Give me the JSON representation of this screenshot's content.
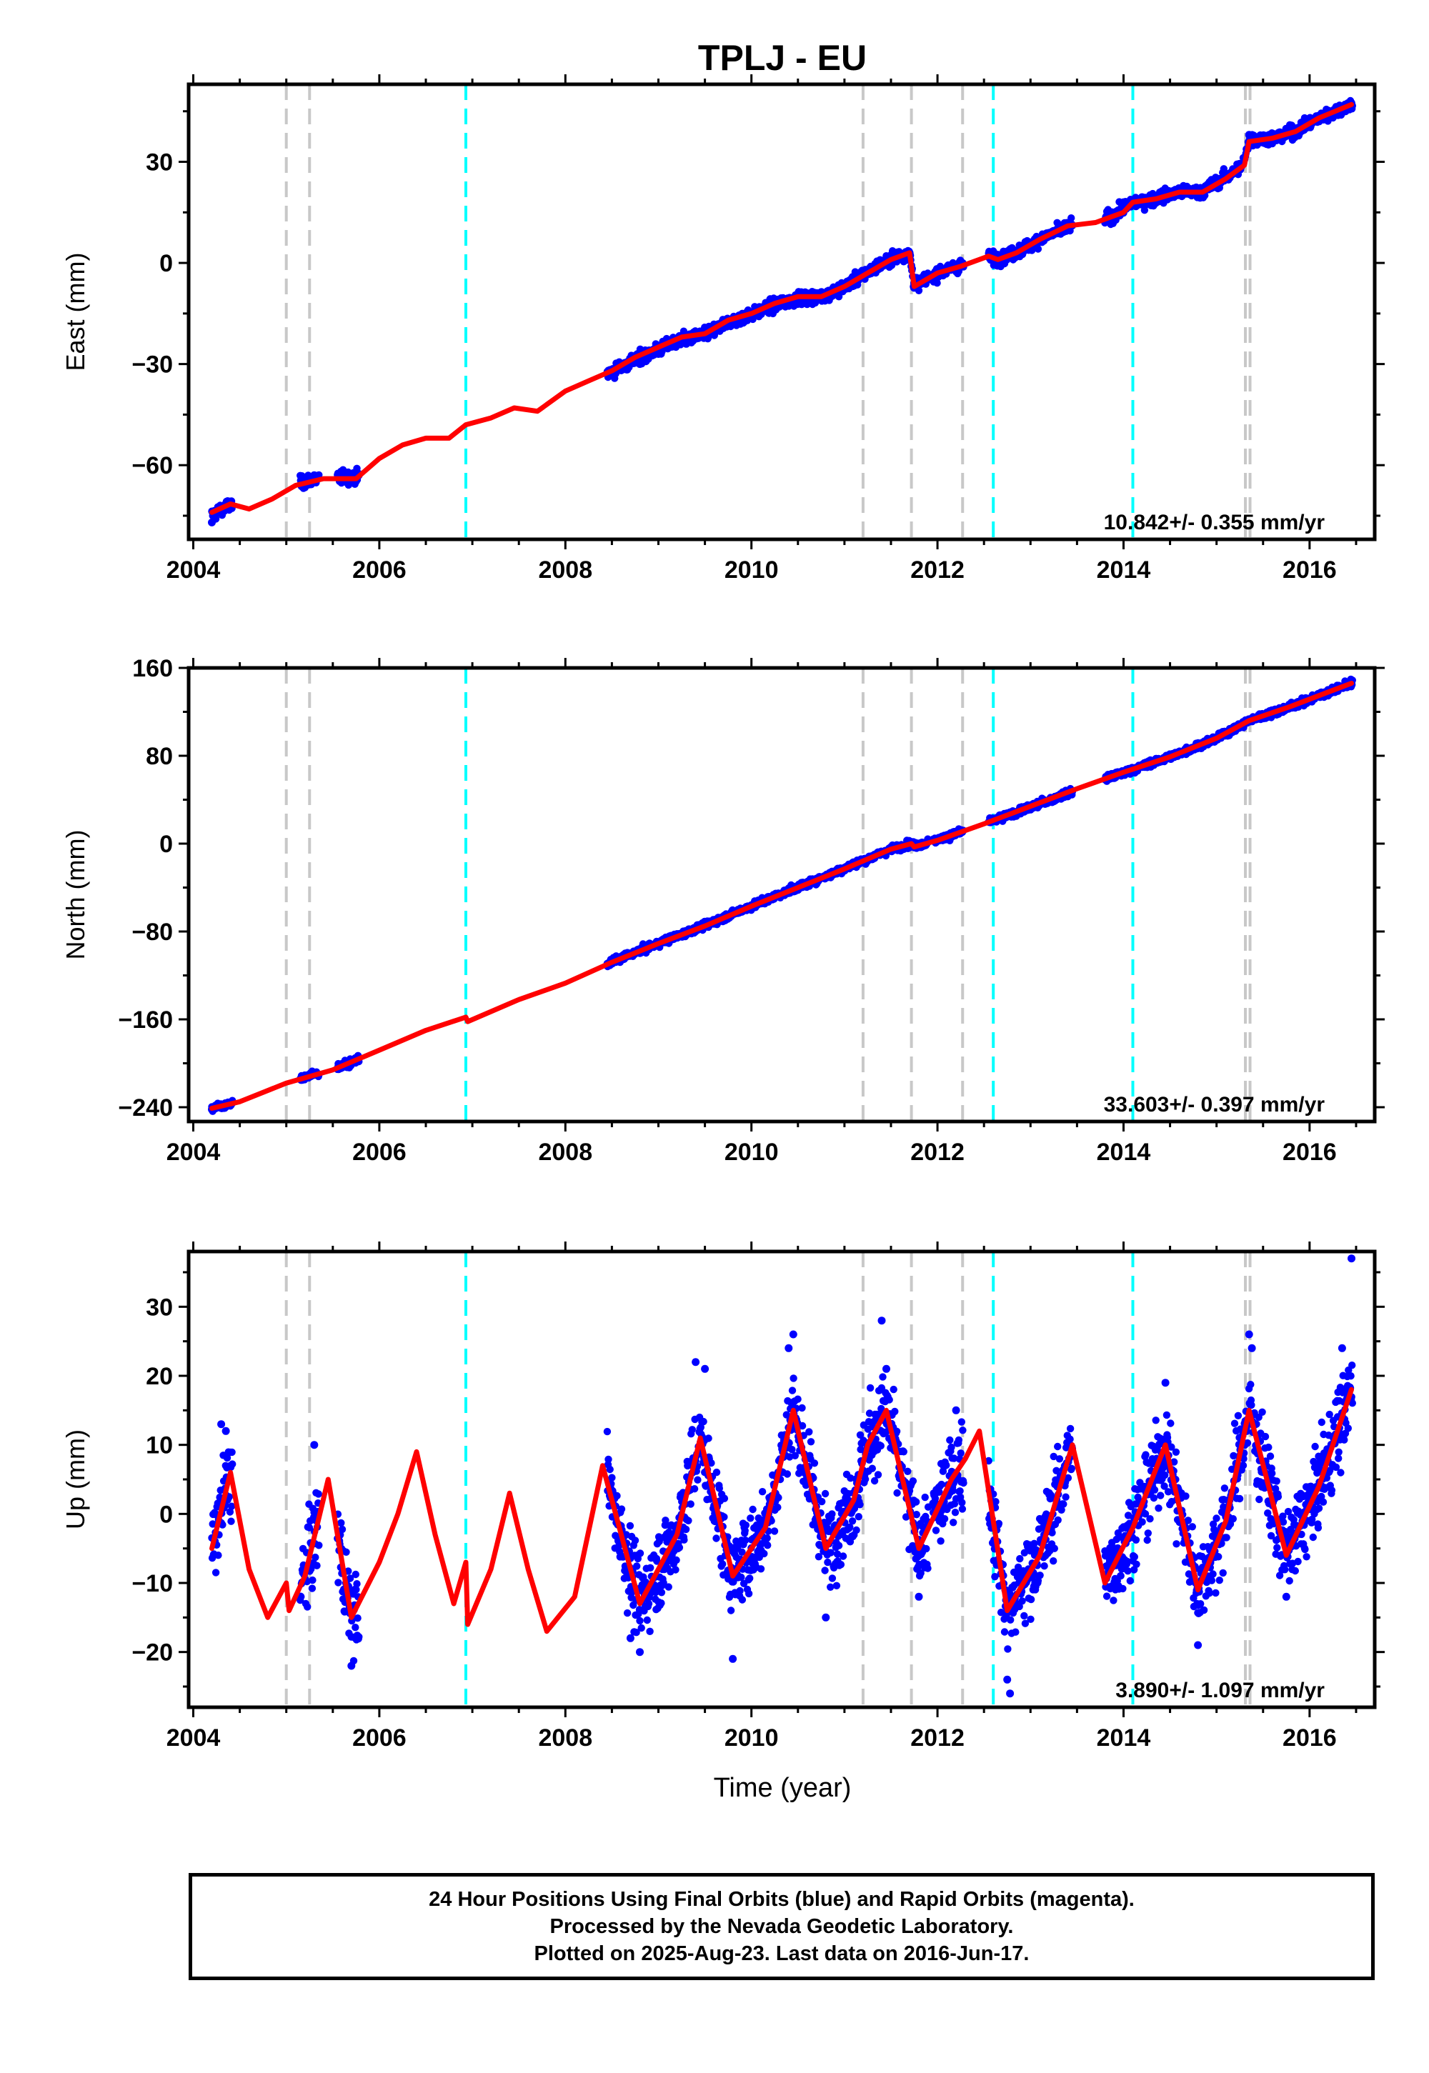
{
  "title": "TPLJ - EU",
  "xlabel": "Time (year)",
  "colors": {
    "data": "#0000ff",
    "model": "#ff0000",
    "gray_event": "#c8c8c8",
    "cyan_event": "#00ffff",
    "frame": "#000000"
  },
  "footer": {
    "line1": "24 Hour Positions Using Final Orbits (blue) and Rapid Orbits (magenta).",
    "line2": "Processed by the Nevada Geodetic Laboratory.",
    "line3": "Plotted on 2025-Aug-23. Last data on 2016-Jun-17."
  },
  "chart_data": [
    {
      "type": "scatter",
      "title": "TPLJ - EU",
      "ylabel": "East (mm)",
      "xlim": [
        2003.95,
        2016.7
      ],
      "ylim": [
        -82,
        53
      ],
      "xticks": [
        2004,
        2006,
        2008,
        2010,
        2012,
        2014,
        2016
      ],
      "yticks": [
        -60,
        -30,
        0,
        30
      ],
      "ytick_labels": [
        "−60",
        "−30",
        "0",
        "30"
      ],
      "rate_text": "10.842+/- 0.355 mm/yr",
      "gray_events": [
        2005.0,
        2005.25,
        2011.2,
        2011.72,
        2012.27,
        2015.31,
        2015.36
      ],
      "cyan_events": [
        2006.93,
        2012.6,
        2014.1
      ],
      "data_segments": [
        [
          2004.2,
          2004.42
        ],
        [
          2005.15,
          2005.35
        ],
        [
          2005.55,
          2005.78
        ],
        [
          2008.45,
          2011.9
        ],
        [
          2011.95,
          2012.28
        ],
        [
          2012.55,
          2013.45
        ],
        [
          2013.8,
          2016.46
        ]
      ],
      "series": [
        {
          "name": "Final Orbits (blue)",
          "kind": "points",
          "x": [
            2004.2,
            2004.3,
            2004.42,
            2005.2,
            2005.3,
            2005.6,
            2005.75,
            2008.5,
            2008.8,
            2009.0,
            2009.3,
            2009.6,
            2010.0,
            2010.3,
            2010.6,
            2010.9,
            2011.2,
            2011.5,
            2011.7,
            2011.75,
            2012.0,
            2012.25,
            2012.6,
            2012.9,
            2013.2,
            2013.4,
            2013.85,
            2014.0,
            2014.2,
            2014.5,
            2014.8,
            2015.0,
            2015.25,
            2015.35,
            2015.6,
            2015.9,
            2016.2,
            2016.45
          ],
          "y": [
            -77,
            -74,
            -72,
            -64,
            -63,
            -63,
            -63,
            -33,
            -30,
            -27,
            -24,
            -21,
            -16,
            -13,
            -11,
            -9,
            -3,
            2,
            3,
            -6,
            -3,
            0,
            1,
            4,
            8,
            10,
            14,
            18,
            18,
            21,
            21,
            25,
            29,
            38,
            37,
            40,
            44,
            47
          ]
        },
        {
          "name": "model",
          "kind": "line",
          "x": [
            2004.2,
            2004.4,
            2004.6,
            2004.85,
            2005.1,
            2005.4,
            2005.75,
            2006.0,
            2006.25,
            2006.5,
            2006.75,
            2006.93,
            2007.2,
            2007.45,
            2007.7,
            2008.0,
            2008.25,
            2008.5,
            2008.75,
            2009.0,
            2009.25,
            2009.5,
            2009.75,
            2010.0,
            2010.25,
            2010.5,
            2010.75,
            2011.0,
            2011.25,
            2011.5,
            2011.7,
            2011.75,
            2012.0,
            2012.25,
            2012.55,
            2012.65,
            2012.85,
            2013.1,
            2013.4,
            2013.7,
            2014.0,
            2014.1,
            2014.35,
            2014.6,
            2014.85,
            2015.1,
            2015.3,
            2015.35,
            2015.6,
            2015.85,
            2016.1,
            2016.45
          ],
          "y": [
            -74,
            -71.5,
            -73,
            -70,
            -66,
            -64,
            -64,
            -58,
            -54,
            -52,
            -52,
            -48,
            -46,
            -43,
            -44,
            -38,
            -35,
            -32,
            -28,
            -25,
            -22,
            -21,
            -17,
            -15,
            -12,
            -10,
            -10,
            -7,
            -3,
            1,
            3,
            -7,
            -3,
            -1,
            2,
            1,
            3,
            7,
            11,
            12,
            15,
            18,
            19,
            21,
            21,
            25,
            29,
            36,
            37,
            39,
            43,
            47
          ]
        }
      ]
    },
    {
      "type": "scatter",
      "ylabel": "North (mm)",
      "xlim": [
        2003.95,
        2016.7
      ],
      "ylim": [
        -253,
        160
      ],
      "xticks": [
        2004,
        2006,
        2008,
        2010,
        2012,
        2014,
        2016
      ],
      "yticks": [
        -240,
        -160,
        -80,
        0,
        80,
        160
      ],
      "ytick_labels": [
        "−240",
        "−160",
        "−80",
        "0",
        "80",
        "160"
      ],
      "rate_text": "33.603+/- 0.397 mm/yr",
      "gray_events": [
        2005.0,
        2005.25,
        2011.2,
        2011.72,
        2012.27,
        2015.31,
        2015.36
      ],
      "cyan_events": [
        2006.93,
        2012.6,
        2014.1
      ],
      "data_segments": [
        [
          2004.2,
          2004.42
        ],
        [
          2005.15,
          2005.35
        ],
        [
          2005.55,
          2005.78
        ],
        [
          2008.45,
          2011.9
        ],
        [
          2011.95,
          2012.28
        ],
        [
          2012.55,
          2013.45
        ],
        [
          2013.8,
          2016.46
        ]
      ],
      "series": [
        {
          "name": "Final Orbits (blue)",
          "kind": "points",
          "x": [
            2004.2,
            2004.42,
            2005.2,
            2005.7,
            2008.5,
            2009.0,
            2009.5,
            2010.0,
            2010.5,
            2011.0,
            2011.5,
            2011.7,
            2012.0,
            2012.25,
            2012.6,
            2013.0,
            2013.4,
            2013.85,
            2014.2,
            2014.6,
            2015.0,
            2015.35,
            2015.8,
            2016.2,
            2016.45
          ],
          "y": [
            -242,
            -236,
            -211,
            -200,
            -107,
            -90,
            -74,
            -56,
            -39,
            -22,
            -5,
            0,
            4,
            11,
            21,
            31,
            43,
            59,
            70,
            82,
            95,
            112,
            125,
            138,
            146
          ]
        },
        {
          "name": "model",
          "kind": "line",
          "x": [
            2004.2,
            2004.5,
            2005.0,
            2005.5,
            2006.0,
            2006.5,
            2006.93,
            2006.95,
            2007.5,
            2008.0,
            2008.5,
            2009.0,
            2009.5,
            2010.0,
            2010.5,
            2011.0,
            2011.5,
            2011.72,
            2011.75,
            2012.0,
            2012.5,
            2013.0,
            2013.5,
            2014.0,
            2014.5,
            2015.0,
            2015.35,
            2015.8,
            2016.2,
            2016.45
          ],
          "y": [
            -241,
            -235,
            -218,
            -206,
            -188,
            -170,
            -158,
            -162,
            -142,
            -127,
            -108,
            -91,
            -75,
            -57,
            -40,
            -23,
            -5,
            0,
            -3,
            3,
            18,
            34,
            50,
            65,
            79,
            96,
            112,
            125,
            138,
            146
          ]
        }
      ]
    },
    {
      "type": "scatter",
      "ylabel": "Up (mm)",
      "xlim": [
        2003.95,
        2016.7
      ],
      "ylim": [
        -28,
        38
      ],
      "xticks": [
        2004,
        2006,
        2008,
        2010,
        2012,
        2014,
        2016
      ],
      "yticks": [
        -20,
        -10,
        0,
        10,
        20,
        30
      ],
      "ytick_labels": [
        "−20",
        "−10",
        "0",
        "10",
        "20",
        "30"
      ],
      "rate_text": "3.890+/- 1.097 mm/yr",
      "gray_events": [
        2005.0,
        2005.25,
        2011.2,
        2011.72,
        2012.27,
        2015.31,
        2015.36
      ],
      "cyan_events": [
        2006.93,
        2012.6,
        2014.1
      ],
      "data_segments": [
        [
          2004.2,
          2004.42
        ],
        [
          2005.15,
          2005.35
        ],
        [
          2005.55,
          2005.78
        ],
        [
          2008.45,
          2011.9
        ],
        [
          2011.95,
          2012.28
        ],
        [
          2012.55,
          2013.45
        ],
        [
          2013.8,
          2016.46
        ]
      ],
      "series": [
        {
          "name": "Final Orbits (blue)",
          "kind": "points",
          "x": [
            2004.3,
            2004.35,
            2005.3,
            2005.7,
            2008.7,
            2008.8,
            2009.4,
            2009.5,
            2009.8,
            2010.4,
            2010.45,
            2010.8,
            2011.4,
            2011.45,
            2011.8,
            2012.2,
            2012.75,
            2012.78,
            2013.2,
            2013.9,
            2014.45,
            2014.8,
            2015.35,
            2015.38,
            2015.75,
            2016.35,
            2016.45
          ],
          "y": [
            13,
            12,
            10,
            -22,
            -18,
            -20,
            22,
            21,
            -21,
            24,
            26,
            -15,
            28,
            21,
            -12,
            15,
            -24,
            -26,
            3,
            -5,
            19,
            -19,
            26,
            24,
            -12,
            24,
            37
          ]
        },
        {
          "name": "model",
          "kind": "line",
          "x": [
            2004.2,
            2004.4,
            2004.6,
            2004.8,
            2005.0,
            2005.03,
            2005.2,
            2005.45,
            2005.7,
            2006.0,
            2006.2,
            2006.4,
            2006.6,
            2006.8,
            2006.93,
            2006.95,
            2007.2,
            2007.4,
            2007.6,
            2007.8,
            2008.1,
            2008.4,
            2008.8,
            2009.2,
            2009.45,
            2009.8,
            2010.15,
            2010.45,
            2010.8,
            2011.1,
            2011.25,
            2011.45,
            2011.8,
            2012.15,
            2012.3,
            2012.45,
            2012.75,
            2013.1,
            2013.45,
            2013.8,
            2014.1,
            2014.45,
            2014.8,
            2015.1,
            2015.35,
            2015.75,
            2016.1,
            2016.45
          ],
          "y": [
            -5,
            6,
            -8,
            -15,
            -10,
            -14,
            -9,
            5,
            -15,
            -7,
            0,
            9,
            -3,
            -13,
            -7,
            -16,
            -8,
            3,
            -8,
            -17,
            -12,
            7,
            -13,
            -3,
            11,
            -9,
            -2,
            15,
            -5,
            2,
            10,
            15,
            -5,
            5,
            8,
            12,
            -14,
            -6,
            10,
            -10,
            -2,
            10,
            -11,
            -1,
            15,
            -6,
            4,
            18
          ]
        }
      ]
    }
  ]
}
